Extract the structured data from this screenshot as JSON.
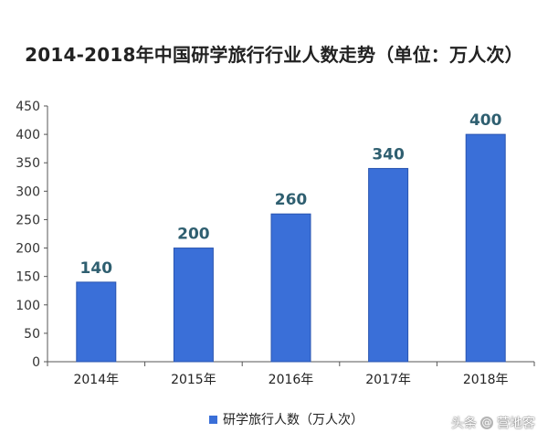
{
  "title": "2014-2018年中国研学旅行行业人数走势（单位：万人次）",
  "chart_data": {
    "type": "bar",
    "categories": [
      "2014年",
      "2015年",
      "2016年",
      "2017年",
      "2018年"
    ],
    "series": [
      {
        "name": "研学旅行人数（万人次）",
        "values": [
          140,
          200,
          260,
          340,
          400
        ],
        "color": "#3a6fd8"
      }
    ],
    "ylim": [
      0,
      450
    ],
    "yticks": [
      0,
      50,
      100,
      150,
      200,
      250,
      300,
      350,
      400,
      450
    ],
    "grid": false,
    "legend_position": "bottom-left",
    "data_labels": true
  },
  "watermark": {
    "platform": "头条",
    "account": "营地客"
  },
  "colors": {
    "bar": "#3a6fd8",
    "bar_edge": "#2a55b0",
    "label": "#2f5f70"
  }
}
